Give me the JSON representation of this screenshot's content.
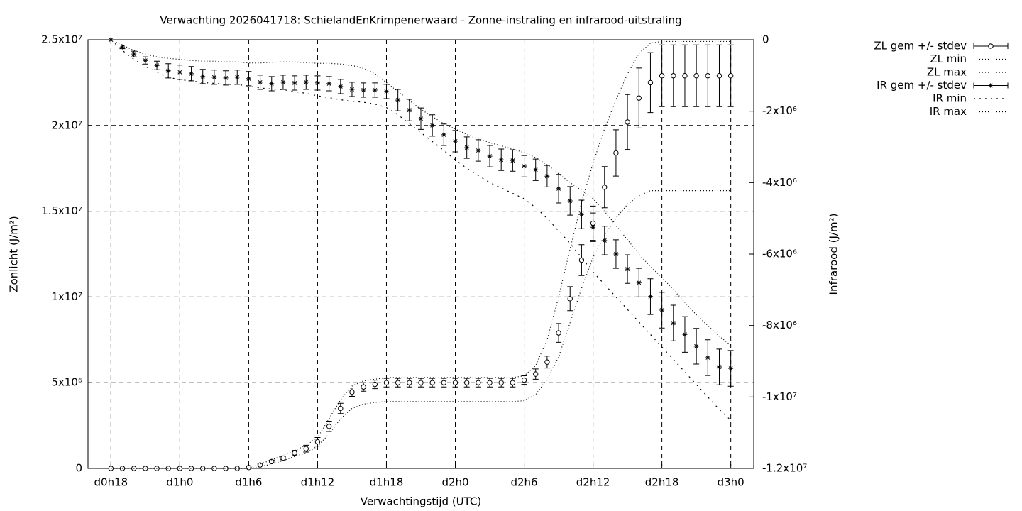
{
  "chart_data": {
    "type": "errorbar",
    "title": "Verwachting 2026041718: SchielandEnKrimpenerwaard - Zonne-instraling en infrarood-uitstraling",
    "x_label": "Verwachtingstijd (UTC)",
    "y_label": "Zonlicht (J/m²)",
    "y2_label": "Infrarood (J/m²)",
    "xlim": [
      16,
      74
    ],
    "xticks": [
      {
        "value": 18,
        "label": "d0h18"
      },
      {
        "value": 24,
        "label": "d1h0"
      },
      {
        "value": 30,
        "label": "d1h6"
      },
      {
        "value": 36,
        "label": "d1h12"
      },
      {
        "value": 42,
        "label": "d1h18"
      },
      {
        "value": 48,
        "label": "d2h0"
      },
      {
        "value": 54,
        "label": "d2h6"
      },
      {
        "value": 60,
        "label": "d2h12"
      },
      {
        "value": 66,
        "label": "d2h18"
      },
      {
        "value": 72,
        "label": "d3h0"
      }
    ],
    "ylim": [
      0,
      25000000
    ],
    "yticks": [
      0,
      {
        "value": 5000000,
        "label": "5x10⁶"
      },
      {
        "value": 10000000,
        "label": "1x10⁷"
      },
      {
        "value": 15000000,
        "label": "1.5x10⁷"
      },
      {
        "value": 20000000,
        "label": "2x10⁷"
      },
      {
        "value": 25000000,
        "label": "2.5x10⁷"
      }
    ],
    "y2lim": [
      -12000000,
      0
    ],
    "y2ticks": [
      0,
      {
        "value": -2000000,
        "label": "-2x10⁶"
      },
      {
        "value": -4000000,
        "label": "-4x10⁶"
      },
      {
        "value": -6000000,
        "label": "-6x10⁶"
      },
      {
        "value": -8000000,
        "label": "-8x10⁶"
      },
      {
        "value": -10000000,
        "label": "-1x10⁷"
      },
      {
        "value": -12000000,
        "label": "-1.2x10⁷"
      }
    ],
    "grid": true,
    "legend": "outside-right",
    "x": [
      18,
      19,
      20,
      21,
      22,
      23,
      24,
      25,
      26,
      27,
      28,
      29,
      30,
      31,
      32,
      33,
      34,
      35,
      36,
      37,
      38,
      39,
      40,
      41,
      42,
      43,
      44,
      45,
      46,
      47,
      48,
      49,
      50,
      51,
      52,
      53,
      54,
      55,
      56,
      57,
      58,
      59,
      60,
      61,
      62,
      63,
      64,
      65,
      66,
      67,
      68,
      69,
      70,
      71,
      72
    ],
    "series": [
      {
        "name": "ZL gem +/- stdev",
        "color": "#000000",
        "style": "errorbar",
        "marker": "circle",
        "axis": "y",
        "values": [
          0,
          0,
          0,
          0,
          0,
          0,
          0,
          0,
          0,
          0,
          0,
          0,
          50000,
          200000,
          400000,
          600000,
          900000,
          1150000,
          1550000,
          2450000,
          3500000,
          4450000,
          4750000,
          4900000,
          5000000,
          5000000,
          5000000,
          5000000,
          5000000,
          5000000,
          5000000,
          5000000,
          5000000,
          5000000,
          5000000,
          5000000,
          5150000,
          5500000,
          6200000,
          7900000,
          9900000,
          12150000,
          14300000,
          16400000,
          18400000,
          20200000,
          21600000,
          22500000,
          22900000,
          22900000,
          22900000,
          22900000,
          22900000,
          22900000,
          22900000
        ],
        "errors": [
          0,
          0,
          0,
          0,
          0,
          0,
          0,
          0,
          0,
          0,
          0,
          0,
          20000,
          50000,
          80000,
          100000,
          150000,
          200000,
          250000,
          300000,
          300000,
          250000,
          250000,
          250000,
          250000,
          250000,
          250000,
          250000,
          250000,
          250000,
          250000,
          250000,
          250000,
          250000,
          250000,
          250000,
          250000,
          300000,
          350000,
          550000,
          700000,
          900000,
          1000000,
          1200000,
          1350000,
          1600000,
          1750000,
          1750000,
          1800000,
          1800000,
          1800000,
          1800000,
          1800000,
          1800000,
          1800000
        ]
      },
      {
        "name": "ZL min",
        "color": "#000000",
        "style": "dotted",
        "axis": "y",
        "values": [
          0,
          0,
          0,
          0,
          0,
          0,
          0,
          0,
          0,
          0,
          0,
          0,
          0,
          100000,
          250000,
          450000,
          700000,
          900000,
          1300000,
          2000000,
          2900000,
          3500000,
          3750000,
          3850000,
          3900000,
          3900000,
          3900000,
          3900000,
          3900000,
          3900000,
          3900000,
          3900000,
          3900000,
          3900000,
          3900000,
          3900000,
          3950000,
          4300000,
          5200000,
          6500000,
          8500000,
          10500000,
          12300000,
          13600000,
          14600000,
          15400000,
          15900000,
          16200000,
          16200000,
          16200000,
          16200000,
          16200000,
          16200000,
          16200000,
          16200000
        ]
      },
      {
        "name": "ZL max",
        "color": "#000000",
        "style": "dotted",
        "axis": "y",
        "values": [
          0,
          0,
          0,
          0,
          0,
          0,
          0,
          0,
          0,
          0,
          0,
          0,
          0,
          250000,
          500000,
          750000,
          1050000,
          1350000,
          1800000,
          2900000,
          4000000,
          4800000,
          5100000,
          5200000,
          5300000,
          5300000,
          5300000,
          5300000,
          5300000,
          5300000,
          5300000,
          5300000,
          5300000,
          5300000,
          5300000,
          5300000,
          5400000,
          6000000,
          7500000,
          10000000,
          12800000,
          15500000,
          17800000,
          19800000,
          21500000,
          23000000,
          24200000,
          24800000,
          24900000,
          24900000,
          24900000,
          24900000,
          24900000,
          24900000,
          24900000
        ]
      },
      {
        "name": "IR gem +/- stdev",
        "color": "#000000",
        "style": "errorbar",
        "marker": "star",
        "axis": "y2",
        "values": [
          0,
          -200000,
          -400000,
          -580000,
          -720000,
          -870000,
          -910000,
          -950000,
          -1030000,
          -1050000,
          -1070000,
          -1050000,
          -1090000,
          -1190000,
          -1230000,
          -1190000,
          -1210000,
          -1190000,
          -1210000,
          -1230000,
          -1310000,
          -1390000,
          -1410000,
          -1410000,
          -1450000,
          -1690000,
          -1970000,
          -2210000,
          -2400000,
          -2660000,
          -2840000,
          -3020000,
          -3100000,
          -3260000,
          -3360000,
          -3380000,
          -3540000,
          -3640000,
          -3820000,
          -4170000,
          -4510000,
          -4890000,
          -5250000,
          -5620000,
          -6000000,
          -6420000,
          -6800000,
          -7190000,
          -7570000,
          -7930000,
          -8250000,
          -8580000,
          -8900000,
          -9160000,
          -9200000
        ],
        "errors": [
          0,
          50000,
          80000,
          100000,
          120000,
          200000,
          200000,
          200000,
          200000,
          200000,
          200000,
          200000,
          200000,
          200000,
          200000,
          200000,
          200000,
          200000,
          200000,
          200000,
          200000,
          200000,
          200000,
          200000,
          200000,
          300000,
          300000,
          300000,
          300000,
          300000,
          300000,
          300000,
          300000,
          300000,
          300000,
          300000,
          300000,
          300000,
          300000,
          400000,
          400000,
          400000,
          400000,
          400000,
          400000,
          400000,
          400000,
          500000,
          500000,
          500000,
          500000,
          500000,
          500000,
          500000,
          500000
        ]
      },
      {
        "name": "IR min",
        "color": "#000000",
        "style": "sparse-dotted",
        "axis": "y2",
        "values": [
          0,
          -300000,
          -550000,
          -750000,
          -900000,
          -1050000,
          -1120000,
          -1150000,
          -1200000,
          -1220000,
          -1250000,
          -1250000,
          -1300000,
          -1350000,
          -1380000,
          -1400000,
          -1450000,
          -1500000,
          -1570000,
          -1620000,
          -1680000,
          -1720000,
          -1750000,
          -1800000,
          -1900000,
          -2100000,
          -2350000,
          -2600000,
          -2850000,
          -3100000,
          -3360000,
          -3600000,
          -3800000,
          -4000000,
          -4150000,
          -4300000,
          -4450000,
          -4700000,
          -5000000,
          -5350000,
          -5700000,
          -6100000,
          -6500000,
          -6850000,
          -7200000,
          -7550000,
          -7900000,
          -8250000,
          -8600000,
          -8950000,
          -9300000,
          -9650000,
          -10000000,
          -10350000,
          -10650000
        ]
      },
      {
        "name": "IR max",
        "color": "#000000",
        "style": "dotted",
        "axis": "y2",
        "values": [
          0,
          -150000,
          -300000,
          -400000,
          -480000,
          -520000,
          -550000,
          -580000,
          -600000,
          -600000,
          -620000,
          -620000,
          -650000,
          -650000,
          -630000,
          -620000,
          -620000,
          -640000,
          -660000,
          -660000,
          -680000,
          -720000,
          -800000,
          -950000,
          -1200000,
          -1450000,
          -1700000,
          -1950000,
          -2150000,
          -2350000,
          -2500000,
          -2650000,
          -2780000,
          -2880000,
          -2970000,
          -3060000,
          -3160000,
          -3300000,
          -3500000,
          -3750000,
          -4000000,
          -4220000,
          -4450000,
          -4800000,
          -5200000,
          -5600000,
          -6000000,
          -6350000,
          -6650000,
          -7000000,
          -7350000,
          -7700000,
          -8000000,
          -8300000,
          -8550000
        ]
      }
    ]
  }
}
